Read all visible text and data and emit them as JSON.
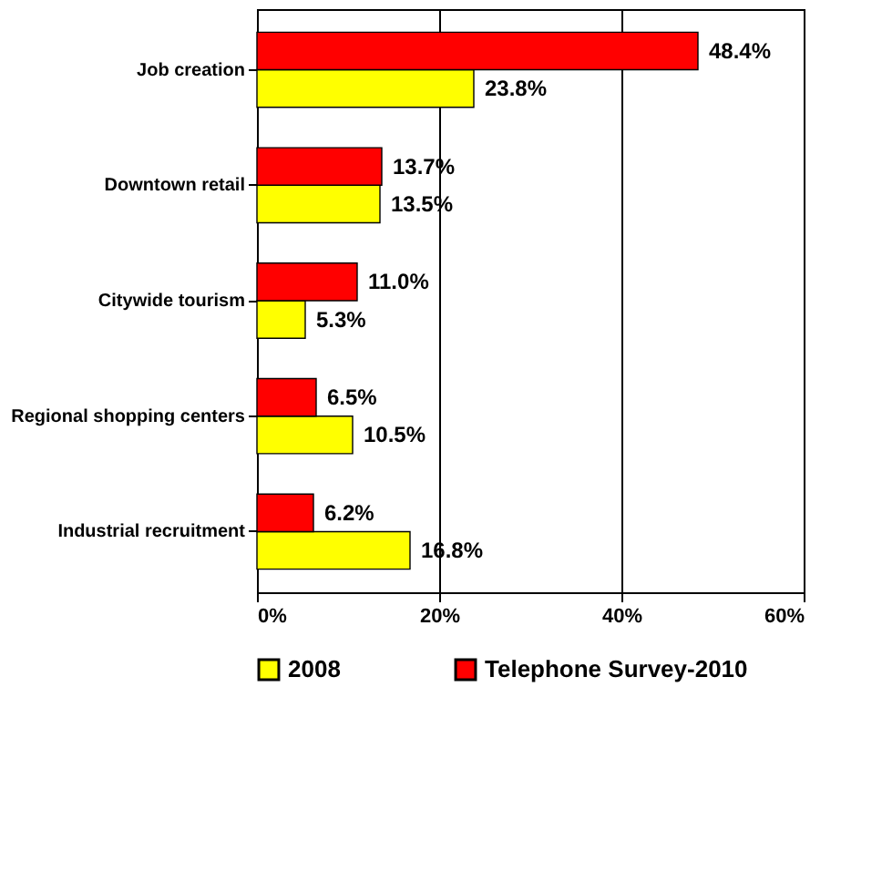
{
  "chart_data": {
    "type": "bar",
    "orientation": "horizontal",
    "categories": [
      "Job creation",
      "Downtown retail",
      "Citywide tourism",
      "Regional shopping centers",
      "Industrial recruitment"
    ],
    "series": [
      {
        "name": "2008",
        "color": "#ffff00",
        "values": [
          23.8,
          13.5,
          5.3,
          10.5,
          16.8
        ],
        "value_labels": [
          "23.8%",
          "13.5%",
          "5.3%",
          "10.5%",
          "16.8%"
        ]
      },
      {
        "name": "Telephone Survey-2010",
        "color": "#ff0000",
        "values": [
          48.4,
          13.7,
          11.0,
          6.5,
          6.2
        ],
        "value_labels": [
          "48.4%",
          "13.7%",
          "11.0%",
          "6.5%",
          "6.2%"
        ]
      }
    ],
    "xlim": [
      0,
      60
    ],
    "xticks": [
      {
        "value": 0,
        "label": "0%"
      },
      {
        "value": 20,
        "label": "20%"
      },
      {
        "value": 40,
        "label": "40%"
      },
      {
        "value": 60,
        "label": "60%"
      }
    ],
    "grid": "x",
    "legend": "bottom"
  }
}
